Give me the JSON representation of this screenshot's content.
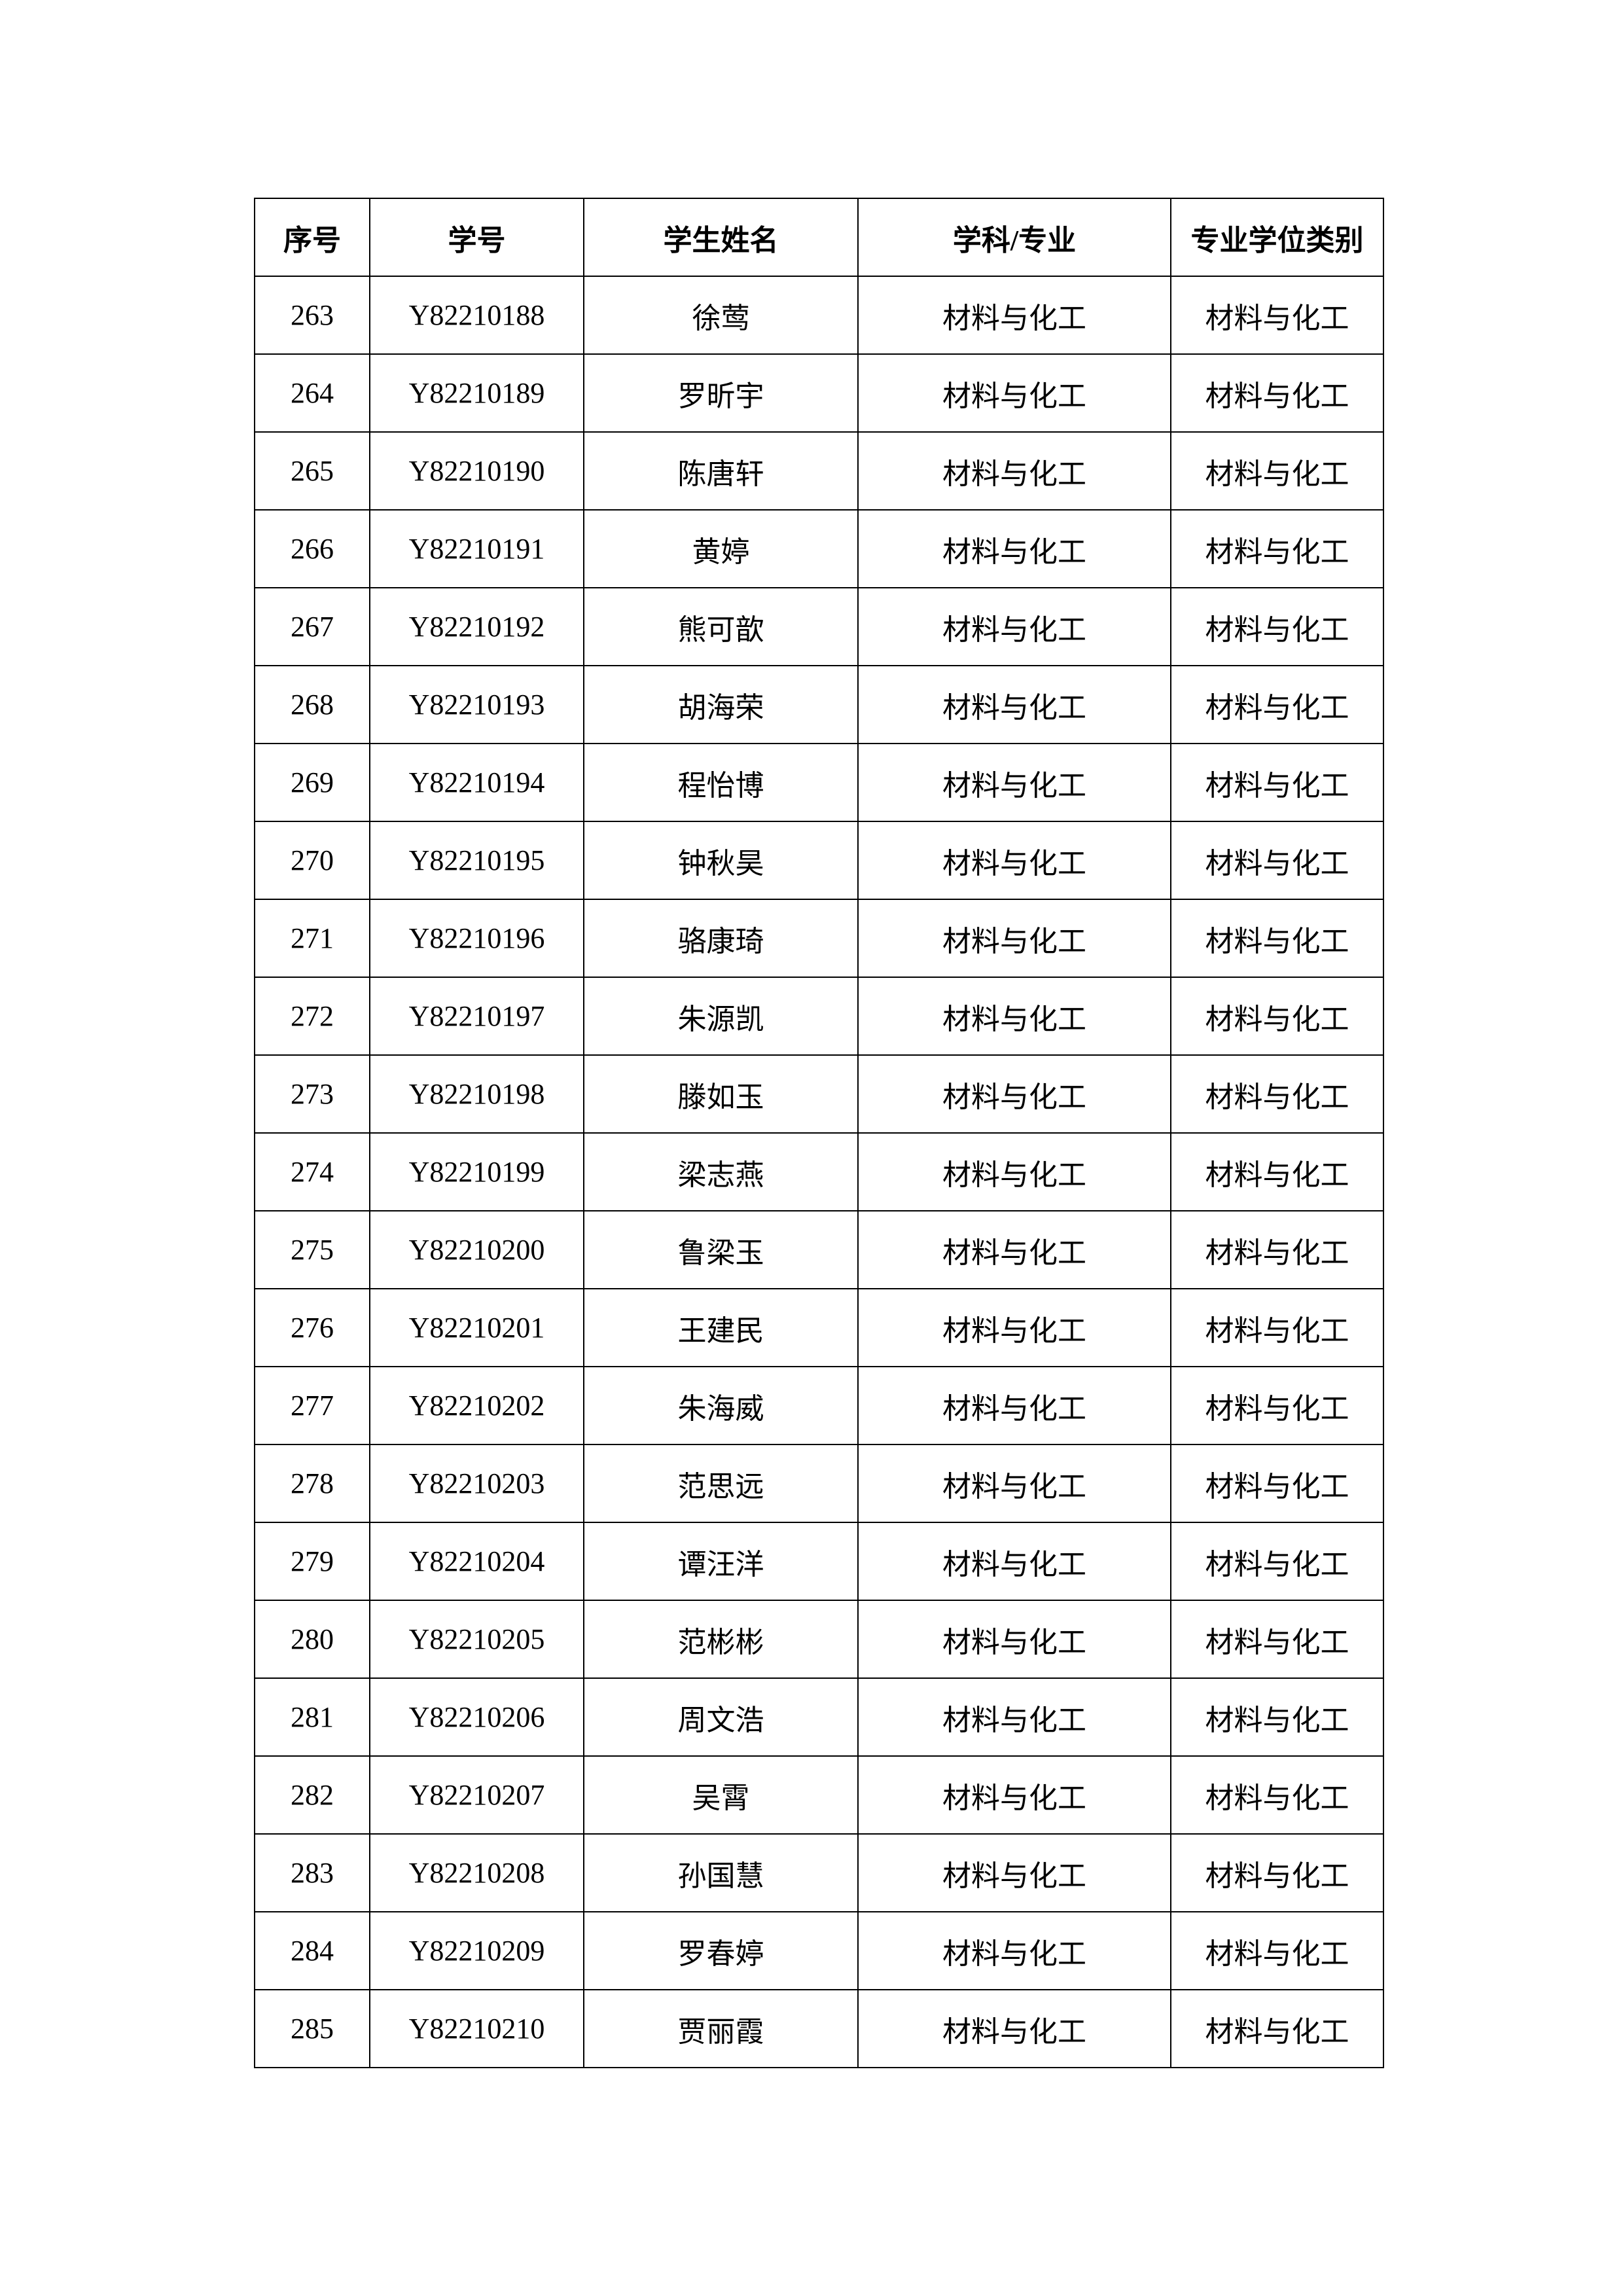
{
  "table": {
    "headers": [
      "序号",
      "学号",
      "学生姓名",
      "学科/专业",
      "专业学位类别"
    ],
    "rows": [
      [
        "263",
        "Y82210188",
        "徐莺",
        "材料与化工",
        "材料与化工"
      ],
      [
        "264",
        "Y82210189",
        "罗昕宇",
        "材料与化工",
        "材料与化工"
      ],
      [
        "265",
        "Y82210190",
        "陈唐轩",
        "材料与化工",
        "材料与化工"
      ],
      [
        "266",
        "Y82210191",
        "黄婷",
        "材料与化工",
        "材料与化工"
      ],
      [
        "267",
        "Y82210192",
        "熊可歆",
        "材料与化工",
        "材料与化工"
      ],
      [
        "268",
        "Y82210193",
        "胡海荣",
        "材料与化工",
        "材料与化工"
      ],
      [
        "269",
        "Y82210194",
        "程怡博",
        "材料与化工",
        "材料与化工"
      ],
      [
        "270",
        "Y82210195",
        "钟秋昊",
        "材料与化工",
        "材料与化工"
      ],
      [
        "271",
        "Y82210196",
        "骆康琦",
        "材料与化工",
        "材料与化工"
      ],
      [
        "272",
        "Y82210197",
        "朱源凯",
        "材料与化工",
        "材料与化工"
      ],
      [
        "273",
        "Y82210198",
        "滕如玉",
        "材料与化工",
        "材料与化工"
      ],
      [
        "274",
        "Y82210199",
        "梁志燕",
        "材料与化工",
        "材料与化工"
      ],
      [
        "275",
        "Y82210200",
        "鲁梁玉",
        "材料与化工",
        "材料与化工"
      ],
      [
        "276",
        "Y82210201",
        "王建民",
        "材料与化工",
        "材料与化工"
      ],
      [
        "277",
        "Y82210202",
        "朱海威",
        "材料与化工",
        "材料与化工"
      ],
      [
        "278",
        "Y82210203",
        "范思远",
        "材料与化工",
        "材料与化工"
      ],
      [
        "279",
        "Y82210204",
        "谭汪洋",
        "材料与化工",
        "材料与化工"
      ],
      [
        "280",
        "Y82210205",
        "范彬彬",
        "材料与化工",
        "材料与化工"
      ],
      [
        "281",
        "Y82210206",
        "周文浩",
        "材料与化工",
        "材料与化工"
      ],
      [
        "282",
        "Y82210207",
        "吴霄",
        "材料与化工",
        "材料与化工"
      ],
      [
        "283",
        "Y82210208",
        "孙国慧",
        "材料与化工",
        "材料与化工"
      ],
      [
        "284",
        "Y82210209",
        "罗春婷",
        "材料与化工",
        "材料与化工"
      ],
      [
        "285",
        "Y82210210",
        "贾丽霞",
        "材料与化工",
        "材料与化工"
      ]
    ]
  }
}
